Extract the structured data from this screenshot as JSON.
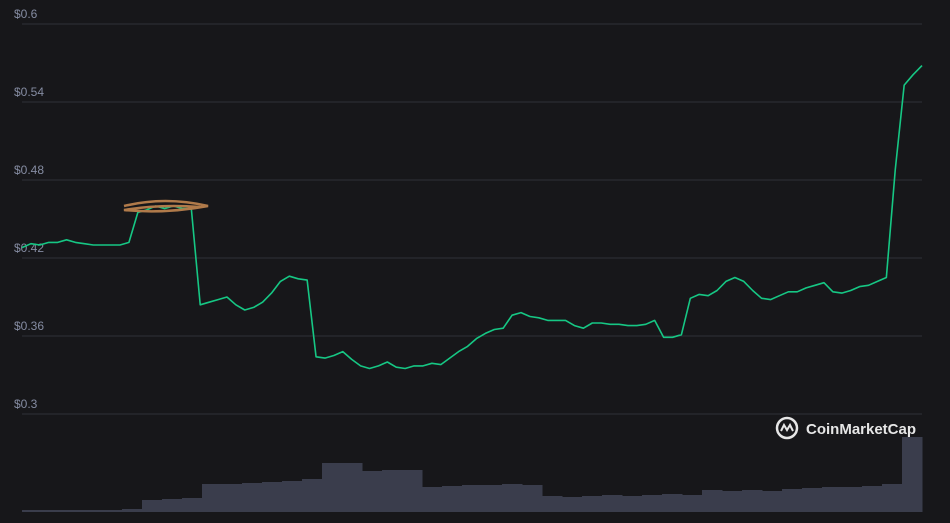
{
  "chart_data": {
    "type": "line",
    "values": [
      0.428,
      0.431,
      0.43,
      0.432,
      0.432,
      0.434,
      0.432,
      0.431,
      0.43,
      0.43,
      0.43,
      0.43,
      0.432,
      0.455,
      0.457,
      0.46,
      0.458,
      0.46,
      0.458,
      0.458,
      0.384,
      0.386,
      0.388,
      0.39,
      0.384,
      0.38,
      0.382,
      0.386,
      0.393,
      0.402,
      0.406,
      0.404,
      0.403,
      0.344,
      0.343,
      0.345,
      0.348,
      0.342,
      0.337,
      0.335,
      0.337,
      0.34,
      0.336,
      0.335,
      0.337,
      0.337,
      0.339,
      0.338,
      0.343,
      0.348,
      0.352,
      0.358,
      0.362,
      0.365,
      0.366,
      0.376,
      0.378,
      0.375,
      0.374,
      0.372,
      0.372,
      0.372,
      0.368,
      0.366,
      0.37,
      0.37,
      0.369,
      0.369,
      0.368,
      0.368,
      0.369,
      0.372,
      0.359,
      0.359,
      0.361,
      0.389,
      0.392,
      0.391,
      0.395,
      0.402,
      0.405,
      0.402,
      0.395,
      0.389,
      0.388,
      0.391,
      0.394,
      0.394,
      0.397,
      0.399,
      0.401,
      0.394,
      0.393,
      0.395,
      0.398,
      0.399,
      0.402,
      0.405,
      0.488,
      0.553,
      0.561,
      0.568
    ],
    "color": "#16c784",
    "ylim": [
      0.3,
      0.6
    ],
    "yticks": [
      {
        "value": 0.3,
        "label": "$0.3"
      },
      {
        "value": 0.36,
        "label": "$0.36"
      },
      {
        "value": 0.42,
        "label": "$0.42"
      },
      {
        "value": 0.48,
        "label": "$0.48"
      },
      {
        "value": 0.54,
        "label": "$0.54"
      },
      {
        "value": 0.6,
        "label": "$0.6"
      }
    ],
    "grid": true,
    "volume": {
      "values": [
        2,
        2,
        2,
        2,
        2,
        3,
        12,
        13,
        14,
        28,
        28,
        29,
        30,
        31,
        33,
        49,
        49,
        41,
        42,
        42,
        25,
        26,
        27,
        27,
        28,
        27,
        16,
        15,
        16,
        17,
        16,
        17,
        18,
        17,
        22,
        21,
        22,
        21,
        23,
        24,
        25,
        25,
        26,
        28,
        75
      ],
      "color": "#3a3d4c"
    },
    "y2lim": [
      0,
      100
    ],
    "watermark": "CoinMarketCap"
  }
}
